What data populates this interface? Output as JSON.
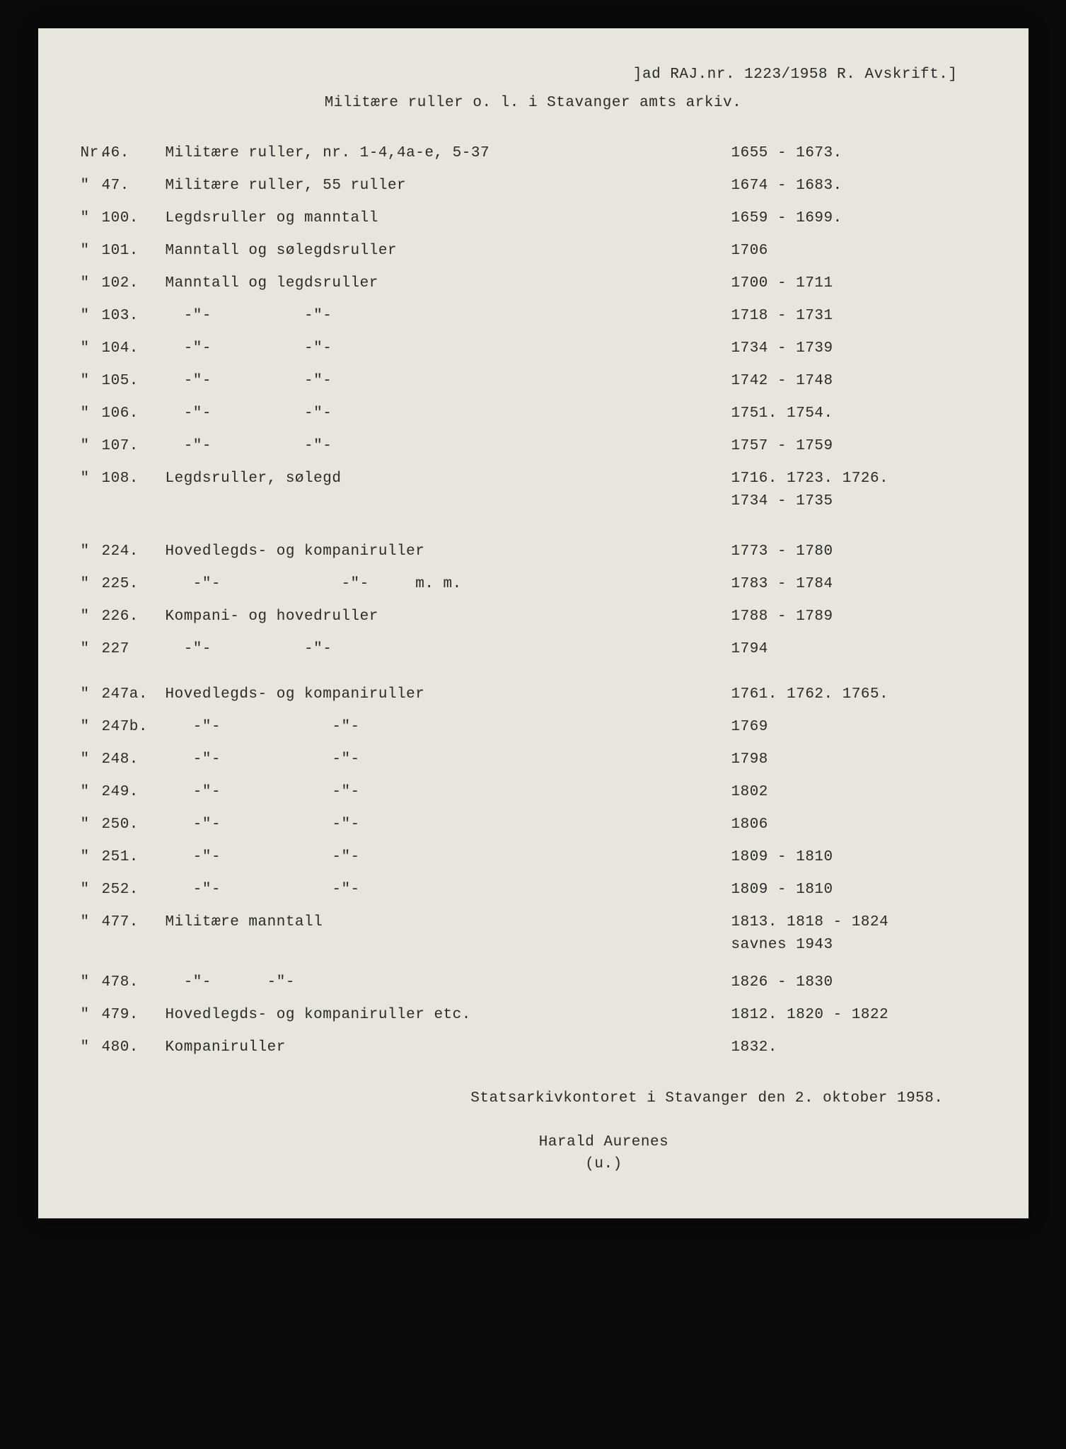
{
  "background_color": "#e8e5dd",
  "text_color": "#2a2a2a",
  "font_family": "Courier New",
  "font_size_pt": 16,
  "header": {
    "ref": "]ad RAJ.nr. 1223/1958 R.  Avskrift.]",
    "title": "Militære ruller o. l. i Stavanger amts arkiv."
  },
  "entries": [
    {
      "mark": "Nr.",
      "num": "46.",
      "desc": "Militære ruller, nr. 1-4,4a-e, 5-37",
      "dates": "1655 - 1673."
    },
    {
      "mark": "\"",
      "num": "47.",
      "desc": "Militære ruller, 55 ruller",
      "dates": "1674 - 1683."
    },
    {
      "mark": "\"",
      "num": "100.",
      "desc": "Legdsruller og manntall",
      "dates": "1659 - 1699."
    },
    {
      "mark": "\"",
      "num": "101.",
      "desc": "Manntall og sølegdsruller",
      "dates": "1706"
    },
    {
      "mark": "\"",
      "num": "102.",
      "desc": "Manntall og legdsruller",
      "dates": "1700 - 1711"
    },
    {
      "mark": "\"",
      "num": "103.",
      "desc": "  -\"-          -\"-",
      "dates": "1718 - 1731"
    },
    {
      "mark": "\"",
      "num": "104.",
      "desc": "  -\"-          -\"-",
      "dates": "1734 - 1739"
    },
    {
      "mark": "\"",
      "num": "105.",
      "desc": "  -\"-          -\"-",
      "dates": "1742 - 1748"
    },
    {
      "mark": "\"",
      "num": "106.",
      "desc": "  -\"-          -\"-",
      "dates": "1751. 1754."
    },
    {
      "mark": "\"",
      "num": "107.",
      "desc": "  -\"-          -\"-",
      "dates": "1757 - 1759"
    },
    {
      "mark": "\"",
      "num": "108.",
      "desc": "Legdsruller, sølegd",
      "dates": "1716. 1723. 1726.\n1734 - 1735",
      "tall": true
    },
    {
      "gap": true
    },
    {
      "mark": "\"",
      "num": "224.",
      "desc": "Hovedlegds- og kompaniruller",
      "dates": "1773 - 1780"
    },
    {
      "mark": "\"",
      "num": "225.",
      "desc": "   -\"-             -\"-     m. m.",
      "dates": "1783 - 1784"
    },
    {
      "mark": "\"",
      "num": "226.",
      "desc": "Kompani- og hovedruller",
      "dates": "1788 - 1789"
    },
    {
      "mark": "\"",
      "num": "227",
      "desc": "  -\"-          -\"-",
      "dates": "1794"
    },
    {
      "gap": true
    },
    {
      "mark": "\"",
      "num": "247a.",
      "desc": "Hovedlegds- og kompaniruller",
      "dates": "1761. 1762. 1765."
    },
    {
      "mark": "\"",
      "num": "247b.",
      "desc": "   -\"-            -\"-",
      "dates": "1769"
    },
    {
      "mark": "\"",
      "num": "248.",
      "desc": "   -\"-            -\"-",
      "dates": "1798"
    },
    {
      "mark": "\"",
      "num": "249.",
      "desc": "   -\"-            -\"-",
      "dates": "1802"
    },
    {
      "mark": "\"",
      "num": "250.",
      "desc": "   -\"-            -\"-",
      "dates": "1806"
    },
    {
      "mark": "\"",
      "num": "251.",
      "desc": "   -\"-            -\"-",
      "dates": "1809 - 1810"
    },
    {
      "mark": "\"",
      "num": "252.",
      "desc": "   -\"-            -\"-",
      "dates": "1809 - 1810"
    },
    {
      "mark": "\"",
      "num": "477.",
      "desc": "Militære manntall",
      "dates": "1813. 1818 - 1824\n        savnes 1943",
      "tall": true
    },
    {
      "mark": "\"",
      "num": "478.",
      "desc": "  -\"-      -\"-",
      "dates": "1826 - 1830"
    },
    {
      "mark": "\"",
      "num": "479.",
      "desc": "Hovedlegds- og kompaniruller etc.",
      "dates": "1812. 1820 - 1822"
    },
    {
      "mark": "\"",
      "num": "480.",
      "desc": "Kompaniruller",
      "dates": "1832."
    }
  ],
  "footer": {
    "place_date": "Statsarkivkontoret i Stavanger den 2. oktober 1958.",
    "signature_name": "Harald Aurenes",
    "signature_note": "(u.)"
  }
}
